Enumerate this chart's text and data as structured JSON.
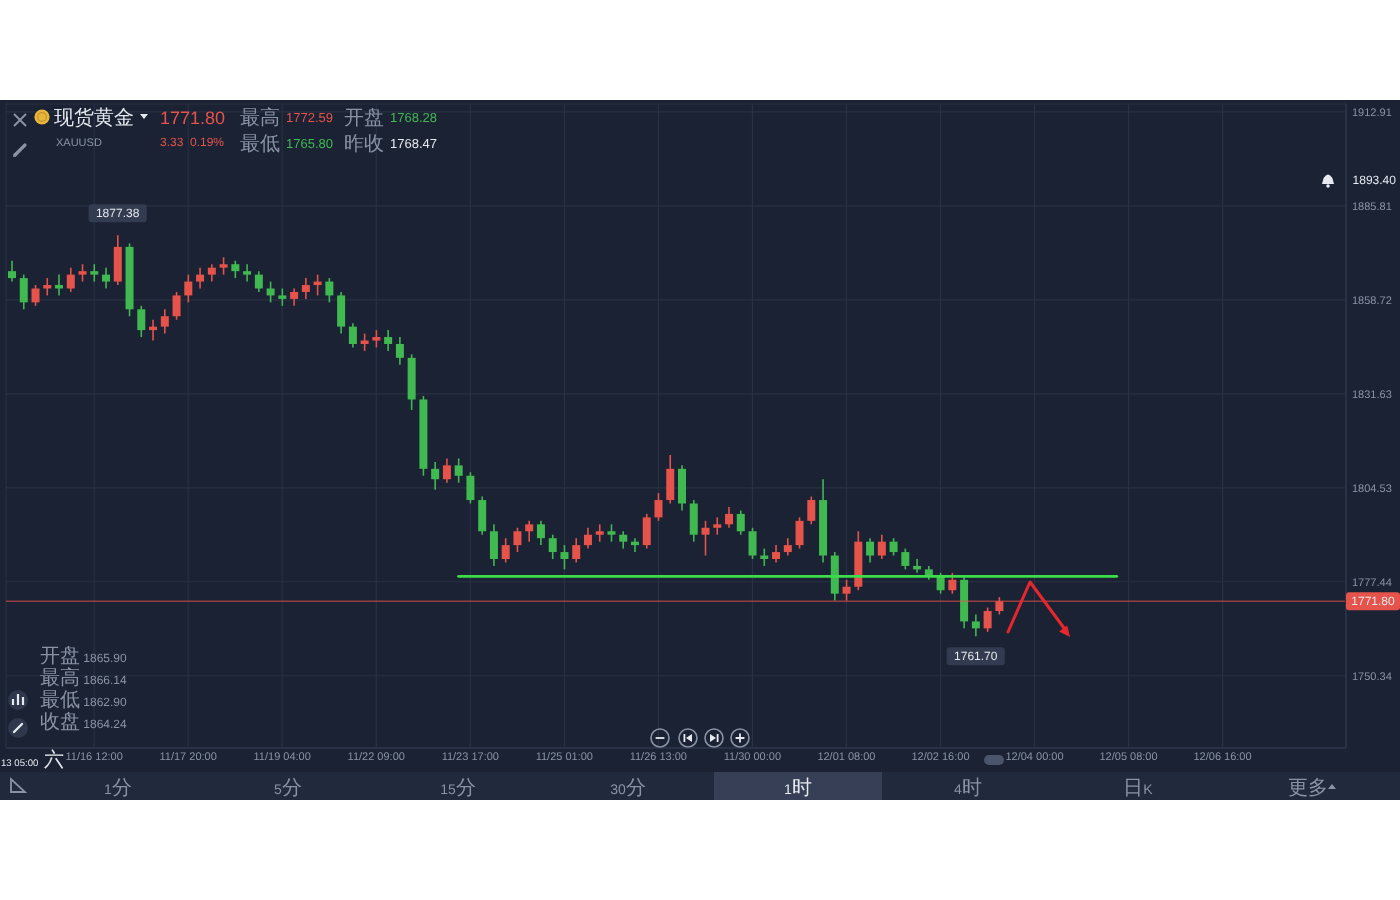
{
  "chart_data": {
    "type": "candlestick",
    "title": "现货黄金",
    "subtitle": "XAUUSD",
    "categories": [
      null,
      null,
      null,
      null,
      null,
      null,
      null,
      "11/16 12:00",
      null,
      null,
      null,
      null,
      null,
      null,
      null,
      "11/17 20:00",
      null,
      null,
      null,
      null,
      null,
      null,
      null,
      "11/19 04:00",
      null,
      null,
      null,
      null,
      null,
      null,
      null,
      "11/22 09:00",
      null,
      null,
      null,
      null,
      null,
      null,
      null,
      "11/23 17:00",
      null,
      null,
      null,
      null,
      null,
      null,
      null,
      "11/25 01:00",
      null,
      null,
      null,
      null,
      null,
      null,
      null,
      "11/26 13:00",
      null,
      null,
      null,
      null,
      null,
      null,
      null,
      "11/30 00:00",
      null,
      null,
      null,
      null,
      null,
      null,
      null,
      "12/01 08:00",
      null,
      null,
      null,
      null,
      null,
      null,
      null,
      "12/02 16:00",
      null,
      null,
      null,
      null,
      null,
      null,
      null,
      "12/04 00:00",
      null,
      null,
      null,
      null,
      null,
      null,
      null,
      "12/05 08:00",
      null,
      null,
      null,
      null,
      null,
      null,
      null,
      "12/06 16:00",
      null,
      null,
      null,
      null,
      null,
      null,
      null,
      null,
      null,
      null
    ],
    "ohlc": [
      [
        1867,
        1870,
        1864,
        1865
      ],
      [
        1865,
        1866,
        1856,
        1858
      ],
      [
        1858,
        1863,
        1857,
        1862
      ],
      [
        1862,
        1865,
        1860,
        1863
      ],
      [
        1863,
        1866,
        1860,
        1862
      ],
      [
        1862,
        1868,
        1861,
        1866
      ],
      [
        1866,
        1869,
        1864,
        1867
      ],
      [
        1867,
        1869,
        1864,
        1866
      ],
      [
        1866,
        1868,
        1862,
        1864
      ],
      [
        1864,
        1877.38,
        1863,
        1874
      ],
      [
        1874,
        1875,
        1854,
        1856
      ],
      [
        1856,
        1857,
        1848,
        1850
      ],
      [
        1850,
        1853,
        1847,
        1851
      ],
      [
        1851,
        1856,
        1849,
        1854
      ],
      [
        1854,
        1861,
        1853,
        1860
      ],
      [
        1860,
        1866,
        1858,
        1864
      ],
      [
        1864,
        1868,
        1862,
        1866
      ],
      [
        1866,
        1869,
        1864,
        1868
      ],
      [
        1868,
        1871,
        1866,
        1869
      ],
      [
        1869,
        1870,
        1865,
        1867
      ],
      [
        1867,
        1869,
        1864,
        1866
      ],
      [
        1866,
        1867,
        1861,
        1862
      ],
      [
        1862,
        1864,
        1858,
        1860
      ],
      [
        1860,
        1862,
        1857,
        1859
      ],
      [
        1859,
        1862,
        1857,
        1861
      ],
      [
        1861,
        1865,
        1859,
        1863
      ],
      [
        1863,
        1866,
        1860,
        1864
      ],
      [
        1864,
        1865,
        1858,
        1860
      ],
      [
        1860,
        1861,
        1849,
        1851
      ],
      [
        1851,
        1852,
        1845,
        1846
      ],
      [
        1846,
        1849,
        1844,
        1847
      ],
      [
        1847,
        1850,
        1845,
        1848
      ],
      [
        1848,
        1850,
        1844,
        1846
      ],
      [
        1846,
        1848,
        1840,
        1842
      ],
      [
        1842,
        1843,
        1827,
        1830
      ],
      [
        1830,
        1831,
        1808,
        1810
      ],
      [
        1810,
        1812,
        1804,
        1807
      ],
      [
        1807,
        1813,
        1806,
        1811
      ],
      [
        1811,
        1813,
        1806,
        1808
      ],
      [
        1808,
        1809,
        1800,
        1801
      ],
      [
        1801,
        1802,
        1791,
        1792
      ],
      [
        1792,
        1794,
        1782,
        1784
      ],
      [
        1784,
        1790,
        1783,
        1788
      ],
      [
        1788,
        1793,
        1786,
        1792
      ],
      [
        1792,
        1795,
        1789,
        1794
      ],
      [
        1794,
        1795,
        1788,
        1790
      ],
      [
        1790,
        1791,
        1784,
        1786
      ],
      [
        1786,
        1788,
        1781,
        1784
      ],
      [
        1784,
        1790,
        1783,
        1788
      ],
      [
        1788,
        1793,
        1787,
        1791
      ],
      [
        1791,
        1794,
        1789,
        1792
      ],
      [
        1792,
        1794,
        1789,
        1791
      ],
      [
        1791,
        1792,
        1787,
        1789
      ],
      [
        1789,
        1790,
        1786,
        1788
      ],
      [
        1788,
        1797,
        1787,
        1796
      ],
      [
        1796,
        1803,
        1795,
        1801
      ],
      [
        1801,
        1814,
        1800,
        1810
      ],
      [
        1810,
        1811,
        1798,
        1800
      ],
      [
        1800,
        1801,
        1789,
        1791
      ],
      [
        1791,
        1795,
        1785,
        1793
      ],
      [
        1793,
        1796,
        1791,
        1794
      ],
      [
        1794,
        1799,
        1793,
        1797
      ],
      [
        1797,
        1798,
        1791,
        1792
      ],
      [
        1792,
        1793,
        1784,
        1785
      ],
      [
        1785,
        1787,
        1782,
        1784
      ],
      [
        1784,
        1788,
        1783,
        1786
      ],
      [
        1786,
        1790,
        1785,
        1788
      ],
      [
        1788,
        1796,
        1787,
        1795
      ],
      [
        1795,
        1802,
        1794,
        1801
      ],
      [
        1801,
        1807,
        1783,
        1785
      ],
      [
        1785,
        1786,
        1772,
        1774
      ],
      [
        1774,
        1778,
        1772,
        1776
      ],
      [
        1776,
        1792,
        1775,
        1789
      ],
      [
        1789,
        1790,
        1783,
        1785
      ],
      [
        1785,
        1791,
        1784,
        1789
      ],
      [
        1789,
        1790,
        1785,
        1786
      ],
      [
        1786,
        1787,
        1781,
        1782
      ],
      [
        1782,
        1784,
        1780,
        1781
      ],
      [
        1781,
        1782,
        1778,
        1779
      ],
      [
        1779,
        1780,
        1774,
        1775
      ],
      [
        1775,
        1780,
        1774,
        1778
      ],
      [
        1778,
        1779,
        1764,
        1766
      ],
      [
        1766,
        1768,
        1761.7,
        1764
      ],
      [
        1764,
        1770,
        1763,
        1769
      ],
      [
        1769,
        1773,
        1768,
        1771.8
      ],
      null,
      null,
      null,
      null,
      null,
      null,
      null,
      null,
      null,
      null,
      null,
      null,
      null,
      null,
      null,
      null,
      null,
      null,
      null,
      null,
      null,
      null,
      null,
      null,
      null,
      null,
      null,
      null,
      null
    ],
    "colors": [
      "#3fb950",
      "#3fb950",
      "#e5534b",
      "#e5534b",
      "#3fb950",
      "#e5534b",
      "#e5534b",
      "#3fb950",
      "#3fb950",
      "#e5534b",
      "#3fb950",
      "#3fb950",
      "#e5534b",
      "#e5534b",
      "#e5534b",
      "#e5534b",
      "#e5534b",
      "#e5534b",
      "#e5534b",
      "#3fb950",
      "#3fb950",
      "#3fb950",
      "#3fb950",
      "#3fb950",
      "#e5534b",
      "#e5534b",
      "#e5534b",
      "#3fb950",
      "#3fb950",
      "#3fb950",
      "#e5534b",
      "#e5534b",
      "#3fb950",
      "#3fb950",
      "#3fb950",
      "#3fb950",
      "#3fb950",
      "#e5534b",
      "#3fb950",
      "#3fb950",
      "#3fb950",
      "#3fb950",
      "#e5534b",
      "#e5534b",
      "#e5534b",
      "#3fb950",
      "#3fb950",
      "#3fb950",
      "#e5534b",
      "#e5534b",
      "#e5534b",
      "#3fb950",
      "#3fb950",
      "#3fb950",
      "#e5534b",
      "#e5534b",
      "#e5534b",
      "#3fb950",
      "#3fb950",
      "#e5534b",
      "#e5534b",
      "#e5534b",
      "#3fb950",
      "#3fb950",
      "#3fb950",
      "#e5534b",
      "#e5534b",
      "#e5534b",
      "#e5534b",
      "#3fb950",
      "#3fb950",
      "#e5534b",
      "#e5534b",
      "#3fb950",
      "#e5534b",
      "#3fb950",
      "#3fb950",
      "#3fb950",
      "#3fb950",
      "#3fb950",
      "#e5534b",
      "#3fb950",
      "#3fb950",
      "#e5534b",
      "#e5534b",
      null,
      null,
      null,
      null,
      null,
      null,
      null,
      null,
      null,
      null,
      null,
      null,
      null,
      null,
      null,
      null,
      null,
      null,
      null,
      null,
      null,
      null,
      null,
      null,
      null,
      null,
      null,
      null,
      null
    ],
    "series": [
      {
        "type": "line",
        "color": "#3ddc4a",
        "values": [
          null,
          null,
          null,
          null,
          null,
          null,
          null,
          null,
          null,
          null,
          null,
          null,
          null,
          null,
          null,
          null,
          null,
          null,
          null,
          null,
          null,
          null,
          null,
          null,
          null,
          null,
          null,
          null,
          null,
          null,
          null,
          null,
          null,
          null,
          null,
          null,
          null,
          null,
          1779,
          1779,
          1779,
          1779,
          1779,
          1779,
          1779,
          1779,
          1779,
          1779,
          1779,
          1779,
          1779,
          1779,
          1779,
          1779,
          1779,
          1779,
          1779,
          1779,
          1779,
          1779,
          1779,
          1779,
          1779,
          1779,
          1779,
          1779,
          1779,
          1779,
          1779,
          1779,
          1779,
          1779,
          1779,
          1779,
          1779,
          1779,
          1779,
          1779,
          1779,
          1779,
          1779,
          1779,
          1779,
          1779,
          1779,
          1779,
          1779,
          1779,
          1779,
          1779,
          1779,
          1779,
          1779,
          1779,
          1779,
          null,
          null,
          null,
          null,
          null,
          null,
          null,
          null,
          null,
          null,
          null,
          null,
          null,
          null,
          null,
          null,
          null,
          null,
          null
        ]
      }
    ],
    "ylim": [
      1729.5,
      1915.2
    ],
    "yticks": [
      1750.34,
      1777.44,
      1804.53,
      1831.63,
      1858.72,
      1885.81,
      1912.91
    ],
    "grid": true,
    "ref_lines": [
      {
        "axis": "y",
        "value": 1771.8,
        "label": "1771.80",
        "color": "#e5534b"
      }
    ],
    "annotations": [
      {
        "text": "1877.38",
        "y": 1877.38
      },
      {
        "text": "1761.70",
        "y": 1761.7
      },
      "1771.80",
      "3.33",
      "0.19%",
      "最高",
      "1772.59",
      "开盘",
      "1768.28",
      "最低",
      "1765.80",
      "昨收",
      "1768.47",
      "开盘 1865.90",
      "最高 1866.14",
      "最低 1862.90",
      "收盘 1864.24",
      "13 05:00 六",
      "1893.40",
      "1分",
      "5分",
      "15分",
      "30分",
      "1时",
      "4时",
      "日K",
      "更多"
    ]
  }
}
